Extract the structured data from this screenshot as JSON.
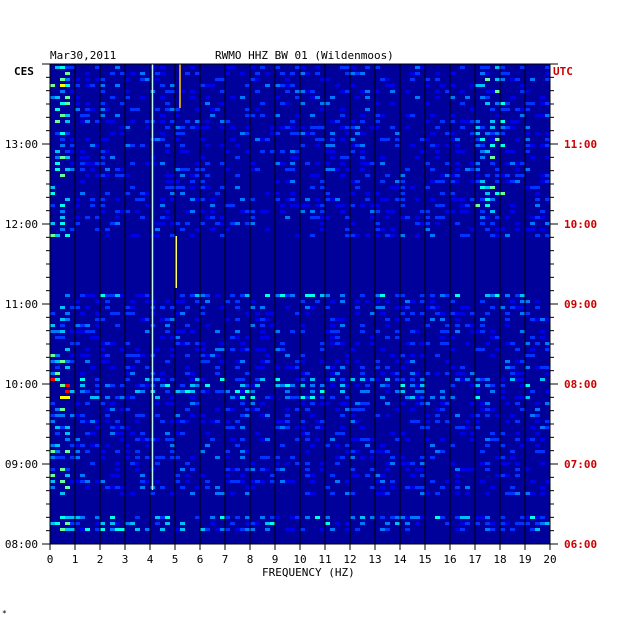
{
  "chart_data": {
    "type": "heatmap",
    "title_date": "Mar30,2011",
    "title_station": "RWMO HHZ BW 01 (Wildenmoos)",
    "left_tz": "CES",
    "right_tz": "UTC",
    "xlabel": "FREQUENCY (HZ)",
    "xlim": [
      0,
      20
    ],
    "x_ticks": [
      "0",
      "1",
      "2",
      "3",
      "4",
      "5",
      "6",
      "7",
      "8",
      "9",
      "10",
      "11",
      "12",
      "13",
      "14",
      "15",
      "16",
      "17",
      "18",
      "19",
      "20"
    ],
    "ces_ticks": [
      "08:00",
      "09:00",
      "10:00",
      "11:00",
      "12:00",
      "13:00"
    ],
    "utc_ticks": [
      "06:00",
      "07:00",
      "08:00",
      "09:00",
      "10:00",
      "11:00"
    ],
    "time_range_ces_hours": [
      8.0,
      13.9
    ],
    "colors": {
      "background": "#00009a",
      "low": "#0000ff",
      "mid": "#00ffff",
      "high": "#ffff00",
      "peak": "#ff0000",
      "grid": "#000000",
      "utc_label": "#cc0000"
    }
  },
  "corner_mark": "*"
}
